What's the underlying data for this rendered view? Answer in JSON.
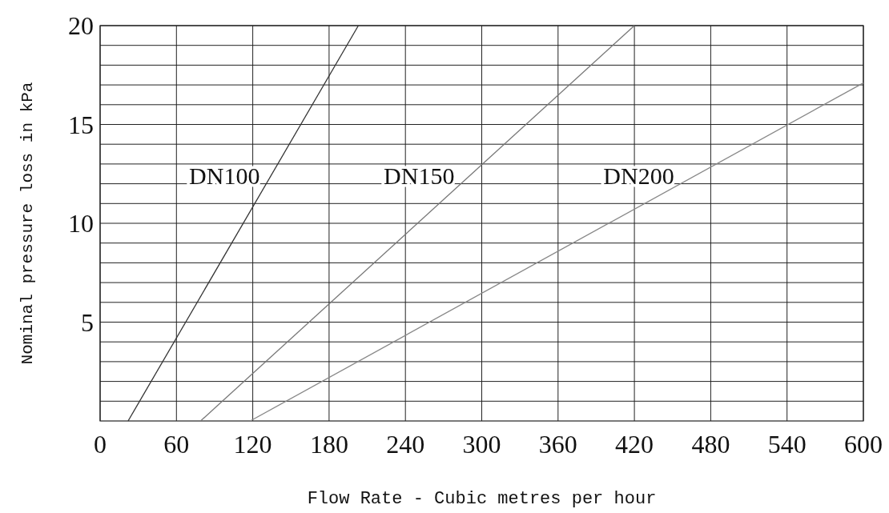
{
  "chart_data": {
    "type": "line",
    "xlabel": "Flow Rate - Cubic metres per hour",
    "ylabel": "Nominal pressure loss in kPa",
    "series": [
      {
        "name": "DN100",
        "color": "#333333",
        "x": [
          22,
          203
        ],
        "values": [
          0,
          20
        ]
      },
      {
        "name": "DN150",
        "color": "#777777",
        "x": [
          79,
          420
        ],
        "values": [
          0,
          20
        ]
      },
      {
        "name": "DN200",
        "color": "#888888",
        "x": [
          118,
          600
        ],
        "values": [
          0,
          17.1
        ]
      }
    ],
    "xlim": [
      0,
      600
    ],
    "xticks": [
      0,
      60,
      120,
      180,
      240,
      300,
      360,
      420,
      480,
      540,
      600
    ],
    "ylim": [
      0,
      20
    ],
    "yticks": [
      {
        "value": 1,
        "label": null
      },
      {
        "value": 2,
        "label": null
      },
      {
        "value": 3,
        "label": null
      },
      {
        "value": 4,
        "label": null
      },
      5,
      {
        "value": 6,
        "label": null
      },
      {
        "value": 7,
        "label": null
      },
      {
        "value": 8,
        "label": null
      },
      {
        "value": 9,
        "label": null
      },
      10,
      {
        "value": 11,
        "label": null
      },
      {
        "value": 12,
        "label": null
      },
      {
        "value": 13,
        "label": null
      },
      {
        "value": 14,
        "label": null
      },
      15,
      {
        "value": 16,
        "label": null
      },
      {
        "value": 17,
        "label": null
      },
      {
        "value": 18,
        "label": null
      },
      {
        "value": 19,
        "label": null
      },
      20
    ],
    "grid": true,
    "marker": "none",
    "line_style": "solid"
  }
}
